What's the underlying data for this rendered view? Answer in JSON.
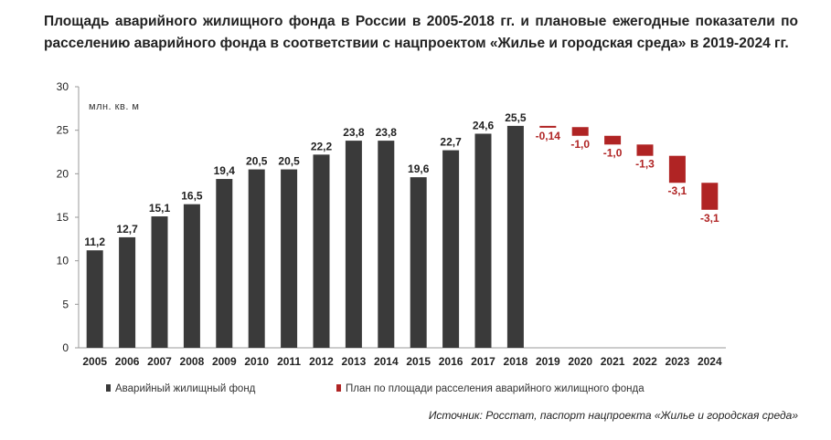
{
  "title": "Площадь аварийного жилищного фонда в России в 2005-2018 гг. и плановые ежегодные показатели по расселению аварийного фонда в соответствии с нацпроектом «Жилье и городская среда» в 2019-2024 гг.",
  "source": "Источник: Росстат, паспорт нацпроекта «Жилье и городская среда»",
  "chart_data": {
    "type": "bar",
    "ylabel": "млн. кв. м",
    "ylim": [
      0,
      30
    ],
    "yticks": [
      0,
      5,
      10,
      15,
      20,
      25,
      30
    ],
    "grid": false,
    "legend_position": "bottom",
    "categories": [
      "2005",
      "2006",
      "2007",
      "2008",
      "2009",
      "2010",
      "2011",
      "2012",
      "2013",
      "2014",
      "2015",
      "2016",
      "2017",
      "2018",
      "2019",
      "2020",
      "2021",
      "2022",
      "2023",
      "2024"
    ],
    "series": [
      {
        "name": "Аварийный жилищный фонд",
        "color": "#3a3a3a",
        "values": [
          11.2,
          12.7,
          15.1,
          16.5,
          19.4,
          20.5,
          20.5,
          22.2,
          23.8,
          23.8,
          19.6,
          22.7,
          24.6,
          25.5,
          null,
          null,
          null,
          null,
          null,
          null
        ],
        "labels": [
          "11,2",
          "12,7",
          "15,1",
          "16,5",
          "19,4",
          "20,5",
          "20,5",
          "22,2",
          "23,8",
          "23,8",
          "19,6",
          "22,7",
          "24,6",
          "25,5",
          "",
          "",
          "",
          "",
          "",
          ""
        ]
      },
      {
        "name": "План по площади расселения аварийного жилищного фонда",
        "color": "#b02424",
        "type": "waterfall",
        "start": 25.5,
        "values": [
          null,
          null,
          null,
          null,
          null,
          null,
          null,
          null,
          null,
          null,
          null,
          null,
          null,
          null,
          -0.14,
          -1.0,
          -1.0,
          -1.3,
          -3.1,
          -3.1
        ],
        "labels": [
          "",
          "",
          "",
          "",
          "",
          "",
          "",
          "",
          "",
          "",
          "",
          "",
          "",
          "",
          "-0,14",
          "-1,0",
          "-1,0",
          "-1,3",
          "-3,1",
          "-3,1"
        ]
      }
    ]
  }
}
